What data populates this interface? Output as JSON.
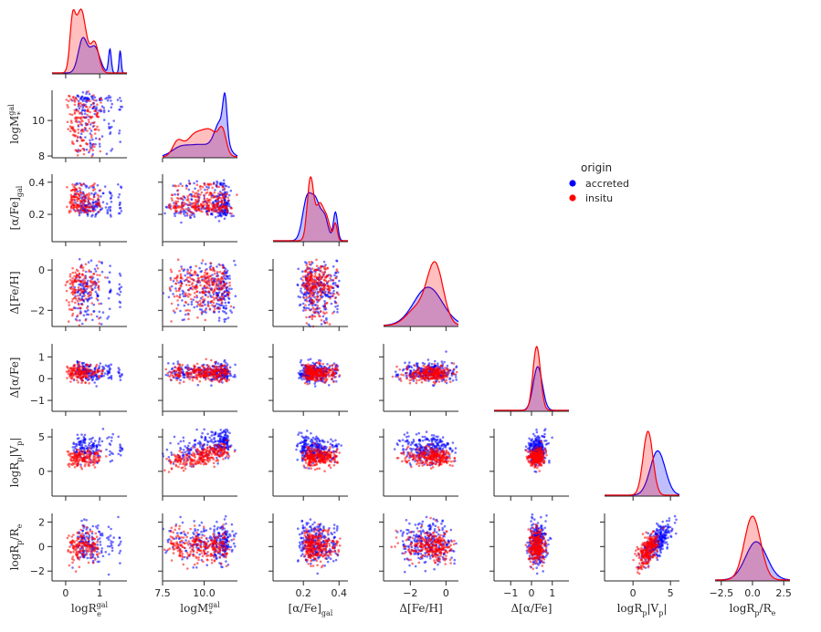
{
  "chart_data": {
    "type": "scatter",
    "title": "",
    "kind": "pairplot-corner",
    "variables": [
      "logR_e^gal",
      "logM*^gal",
      "[α/Fe]_gal",
      "Δ[Fe/H]",
      "Δ[α/Fe]",
      "logR_p|V_p|",
      "logR_p/R_e"
    ],
    "axis_labels": {
      "x": [
        "logR",
        "logM",
        "[α/Fe]",
        "Δ[Fe/H]",
        "Δ[α/Fe]",
        "logR",
        "logR"
      ],
      "y": [
        "logM",
        "[α/Fe]",
        "Δ[Fe/H]",
        "Δ[α/Fe]",
        "logR",
        "logR"
      ]
    },
    "label_sub": {
      "x": [
        "e",
        "*",
        "gal",
        "",
        "",
        "p",
        "p"
      ],
      "y": [
        "*",
        "gal",
        "",
        "",
        "p",
        "p"
      ]
    },
    "label_sup": {
      "x": [
        "gal",
        "gal",
        "",
        "",
        "",
        "",
        ""
      ],
      "y": [
        "gal",
        "",
        "",
        "",
        "",
        ""
      ]
    },
    "label_tail": {
      "x": [
        "",
        "",
        "",
        "",
        "",
        "|V",
        "/R"
      ],
      "y": [
        "",
        "",
        "",
        "",
        "|V",
        "/R"
      ]
    },
    "label_tail_sub": {
      "x": [
        "",
        "",
        "",
        "",
        "",
        "p",
        "e"
      ],
      "y": [
        "",
        "",
        "",
        "",
        "p",
        "e"
      ]
    },
    "label_end": {
      "x": [
        "",
        "",
        "",
        "",
        "",
        "|",
        ""
      ],
      "y": [
        "",
        "",
        "",
        "",
        "|",
        ""
      ]
    },
    "ranges": [
      [
        -0.4,
        1.8
      ],
      [
        7.5,
        12.0
      ],
      [
        0.03,
        0.45
      ],
      [
        -3.5,
        0.7
      ],
      [
        -1.8,
        1.8
      ],
      [
        -3.8,
        6.2
      ],
      [
        -3.0,
        3.0
      ]
    ],
    "y_ranges": [
      [
        null,
        null
      ],
      [
        7.9,
        11.7
      ],
      [
        0.03,
        0.45
      ],
      [
        -2.8,
        0.55
      ],
      [
        -1.5,
        1.6
      ],
      [
        -3.6,
        6.2
      ],
      [
        -2.8,
        2.7
      ]
    ],
    "x_ticks": [
      [
        {
          "v": 0,
          "label": "0"
        },
        {
          "v": 1,
          "label": "1"
        }
      ],
      [
        {
          "v": 7.5,
          "label": "7.5"
        },
        {
          "v": 10.0,
          "label": "10.0"
        }
      ],
      [
        {
          "v": 0.2,
          "label": "0.2"
        },
        {
          "v": 0.4,
          "label": "0.4"
        }
      ],
      [
        {
          "v": -2,
          "label": "−2"
        },
        {
          "v": 0,
          "label": "0"
        }
      ],
      [
        {
          "v": -1,
          "label": "−1"
        },
        {
          "v": 0,
          "label": "0"
        },
        {
          "v": 1,
          "label": "1"
        }
      ],
      [
        {
          "v": 0,
          "label": "0"
        },
        {
          "v": 5,
          "label": "5"
        }
      ],
      [
        {
          "v": -2.5,
          "label": "−2.5"
        },
        {
          "v": 0.0,
          "label": "0.0"
        },
        {
          "v": 2.5,
          "label": "2.5"
        }
      ]
    ],
    "y_ticks": [
      [],
      [
        {
          "v": 8,
          "label": "8"
        },
        {
          "v": 10,
          "label": "10"
        }
      ],
      [
        {
          "v": 0.2,
          "label": "0.2"
        },
        {
          "v": 0.4,
          "label": "0.4"
        }
      ],
      [
        {
          "v": -2,
          "label": "−2"
        },
        {
          "v": 0,
          "label": "0"
        }
      ],
      [
        {
          "v": -1,
          "label": "−1"
        },
        {
          "v": 0,
          "label": "0"
        },
        {
          "v": 1,
          "label": "1"
        }
      ],
      [
        {
          "v": 0,
          "label": "0"
        },
        {
          "v": 5,
          "label": "5"
        }
      ],
      [
        {
          "v": -2,
          "label": "−2"
        },
        {
          "v": 0,
          "label": "0"
        },
        {
          "v": 2,
          "label": "2"
        }
      ]
    ],
    "legend": {
      "title": "origin",
      "placement": "right-middle",
      "entries": [
        {
          "name": "accreted",
          "color": "#0000ff"
        },
        {
          "name": "insitu",
          "color": "#ff0000"
        }
      ]
    },
    "series": [
      {
        "name": "accreted",
        "color": "#0000ff",
        "distributions": [
          {
            "peaks": [
              [
                0.5,
                0.13,
                0.45
              ],
              [
                0.85,
                0.15,
                0.35
              ],
              [
                1.3,
                0.04,
                0.32
              ],
              [
                1.6,
                0.03,
                0.3
              ]
            ]
          },
          {
            "peaks": [
              [
                8.5,
                0.5,
                0.15
              ],
              [
                9.8,
                0.9,
                0.3
              ],
              [
                11.0,
                0.35,
                0.75
              ],
              [
                11.25,
                0.12,
                0.9
              ]
            ]
          },
          {
            "peaks": [
              [
                0.22,
                0.025,
                0.6
              ],
              [
                0.27,
                0.025,
                0.55
              ],
              [
                0.32,
                0.02,
                0.32
              ],
              [
                0.38,
                0.012,
                0.42
              ]
            ]
          },
          {
            "peaks": [
              [
                -1.0,
                0.8,
                0.55
              ]
            ]
          },
          {
            "peaks": [
              [
                0.3,
                0.22,
                0.65
              ]
            ]
          },
          {
            "peaks": [
              [
                3.3,
                1.0,
                0.52
              ]
            ]
          },
          {
            "peaks": [
              [
                0.3,
                0.85,
                0.45
              ]
            ]
          }
        ]
      },
      {
        "name": "insitu",
        "color": "#ff0000",
        "distributions": [
          {
            "peaks": [
              [
                0.2,
                0.08,
                0.6
              ],
              [
                0.45,
                0.15,
                0.85
              ],
              [
                0.85,
                0.12,
                0.4
              ]
            ]
          },
          {
            "peaks": [
              [
                8.4,
                0.3,
                0.35
              ],
              [
                9.4,
                0.5,
                0.5
              ],
              [
                10.4,
                0.5,
                0.6
              ],
              [
                11.1,
                0.22,
                0.5
              ]
            ]
          },
          {
            "peaks": [
              [
                0.24,
                0.018,
                0.92
              ],
              [
                0.29,
                0.02,
                0.5
              ],
              [
                0.33,
                0.02,
                0.32
              ],
              [
                0.38,
                0.01,
                0.25
              ]
            ]
          },
          {
            "peaks": [
              [
                -0.6,
                0.45,
                0.85
              ],
              [
                -1.6,
                0.6,
                0.25
              ]
            ]
          },
          {
            "peaks": [
              [
                0.25,
                0.18,
                0.95
              ]
            ]
          },
          {
            "peaks": [
              [
                2.0,
                0.65,
                0.75
              ]
            ]
          },
          {
            "peaks": [
              [
                0.0,
                0.65,
                0.75
              ]
            ]
          }
        ]
      }
    ]
  }
}
